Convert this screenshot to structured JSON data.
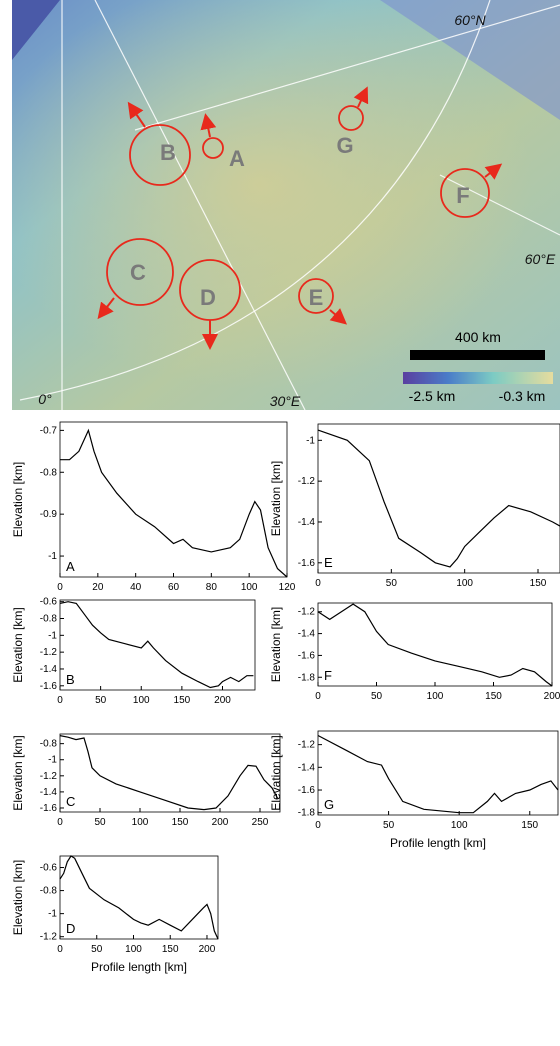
{
  "map": {
    "labels": [
      "60°N",
      "60°E",
      "0°",
      "30°E"
    ],
    "scale_bar": "400 km",
    "colorbar": {
      "min": "-2.5 km",
      "max": "-0.3 km"
    },
    "regions": [
      "A",
      "B",
      "C",
      "D",
      "E",
      "F",
      "G"
    ]
  },
  "chart_data": [
    {
      "type": "line",
      "panel": "A",
      "ylabel": "Elevation [km]",
      "color": "#000000",
      "x": [
        0,
        5,
        10,
        15,
        18,
        22,
        30,
        40,
        50,
        60,
        65,
        70,
        80,
        90,
        95,
        100,
        103,
        106,
        110,
        115,
        120
      ],
      "values": [
        -0.77,
        -0.77,
        -0.75,
        -0.7,
        -0.75,
        -0.8,
        -0.85,
        -0.9,
        -0.93,
        -0.97,
        -0.96,
        -0.98,
        -0.99,
        -0.98,
        -0.96,
        -0.9,
        -0.87,
        -0.89,
        -0.98,
        -1.03,
        -1.05
      ],
      "xlim": [
        0,
        120
      ],
      "ylim": [
        -1.05,
        -0.68
      ],
      "xticks": [
        0,
        20,
        40,
        60,
        80,
        100,
        120
      ],
      "yticks": [
        -0.7,
        -0.8,
        -0.9,
        -1
      ]
    },
    {
      "type": "line",
      "panel": "B",
      "ylabel": "Elevation [km]",
      "color": "#000000",
      "x": [
        0,
        10,
        20,
        30,
        40,
        50,
        60,
        80,
        100,
        108,
        115,
        130,
        150,
        170,
        185,
        195,
        200,
        210,
        220,
        230,
        238
      ],
      "values": [
        -0.62,
        -0.6,
        -0.62,
        -0.75,
        -0.88,
        -0.97,
        -1.05,
        -1.1,
        -1.15,
        -1.07,
        -1.15,
        -1.3,
        -1.45,
        -1.55,
        -1.62,
        -1.6,
        -1.55,
        -1.5,
        -1.55,
        -1.48,
        -1.48
      ],
      "xlim": [
        0,
        240
      ],
      "ylim": [
        -1.65,
        -0.58
      ],
      "xticks": [
        0,
        50,
        100,
        150,
        200
      ],
      "yticks": [
        -0.6,
        -0.8,
        -1,
        -1.2,
        -1.4,
        -1.6
      ]
    },
    {
      "type": "line",
      "panel": "C",
      "ylabel": "Elevation [km]",
      "color": "#000000",
      "x": [
        0,
        10,
        20,
        30,
        35,
        40,
        50,
        70,
        100,
        130,
        160,
        180,
        195,
        210,
        225,
        235,
        245,
        255,
        265,
        272
      ],
      "values": [
        -0.7,
        -0.72,
        -0.75,
        -0.73,
        -0.9,
        -1.1,
        -1.2,
        -1.3,
        -1.4,
        -1.5,
        -1.6,
        -1.62,
        -1.6,
        -1.45,
        -1.2,
        -1.07,
        -1.08,
        -1.25,
        -1.35,
        -1.48
      ],
      "xlim": [
        0,
        275
      ],
      "ylim": [
        -1.65,
        -0.68
      ],
      "xticks": [
        0,
        50,
        100,
        150,
        200,
        250
      ],
      "yticks": [
        -0.8,
        -1,
        -1.2,
        -1.4,
        -1.6
      ]
    },
    {
      "type": "line",
      "panel": "D",
      "ylabel": "Elevation [km]",
      "xlabel": "Profile length [km]",
      "color": "#000000",
      "x": [
        0,
        5,
        10,
        15,
        20,
        30,
        40,
        60,
        80,
        100,
        110,
        120,
        135,
        150,
        165,
        180,
        195,
        200,
        205,
        210,
        215
      ],
      "values": [
        -0.7,
        -0.65,
        -0.55,
        -0.5,
        -0.52,
        -0.65,
        -0.78,
        -0.88,
        -0.95,
        -1.05,
        -1.08,
        -1.1,
        -1.05,
        -1.1,
        -1.15,
        -1.05,
        -0.95,
        -0.92,
        -1,
        -1.15,
        -1.22
      ],
      "xlim": [
        0,
        215
      ],
      "ylim": [
        -1.22,
        -0.5
      ],
      "xticks": [
        0,
        50,
        100,
        150,
        200
      ],
      "yticks": [
        -0.6,
        -0.8,
        -1,
        -1.2
      ]
    },
    {
      "type": "line",
      "panel": "E",
      "ylabel": "Elevation [km]",
      "color": "#000000",
      "x": [
        0,
        20,
        35,
        45,
        55,
        70,
        80,
        90,
        95,
        100,
        110,
        120,
        130,
        145,
        160,
        165
      ],
      "values": [
        -0.95,
        -1,
        -1.1,
        -1.3,
        -1.48,
        -1.55,
        -1.6,
        -1.62,
        -1.58,
        -1.52,
        -1.45,
        -1.38,
        -1.32,
        -1.35,
        -1.4,
        -1.42
      ],
      "xlim": [
        0,
        165
      ],
      "ylim": [
        -1.65,
        -0.92
      ],
      "xticks": [
        0,
        50,
        100,
        150
      ],
      "yticks": [
        -1,
        -1.2,
        -1.4,
        -1.6
      ]
    },
    {
      "type": "line",
      "panel": "F",
      "ylabel": "Elevation [km]",
      "color": "#000000",
      "x": [
        0,
        10,
        20,
        30,
        40,
        50,
        60,
        80,
        100,
        120,
        140,
        155,
        165,
        175,
        185,
        195,
        200
      ],
      "values": [
        -1.2,
        -1.27,
        -1.2,
        -1.13,
        -1.2,
        -1.38,
        -1.5,
        -1.58,
        -1.65,
        -1.7,
        -1.75,
        -1.8,
        -1.78,
        -1.72,
        -1.75,
        -1.84,
        -1.88
      ],
      "xlim": [
        0,
        200
      ],
      "ylim": [
        -1.88,
        -1.12
      ],
      "xticks": [
        0,
        50,
        100,
        150,
        200
      ],
      "yticks": [
        -1.2,
        -1.4,
        -1.6,
        -1.8
      ]
    },
    {
      "type": "line",
      "panel": "G",
      "ylabel": "Elevation [km]",
      "xlabel": "Profile length [km]",
      "color": "#000000",
      "x": [
        0,
        20,
        35,
        45,
        50,
        60,
        75,
        100,
        110,
        120,
        125,
        130,
        140,
        150,
        158,
        165,
        170
      ],
      "values": [
        -1.12,
        -1.25,
        -1.35,
        -1.38,
        -1.5,
        -1.7,
        -1.77,
        -1.8,
        -1.8,
        -1.7,
        -1.63,
        -1.7,
        -1.63,
        -1.6,
        -1.55,
        -1.52,
        -1.6
      ],
      "xlim": [
        0,
        170
      ],
      "ylim": [
        -1.82,
        -1.08
      ],
      "xticks": [
        0,
        50,
        100,
        150
      ],
      "yticks": [
        -1.2,
        -1.4,
        -1.6,
        -1.8
      ]
    }
  ]
}
